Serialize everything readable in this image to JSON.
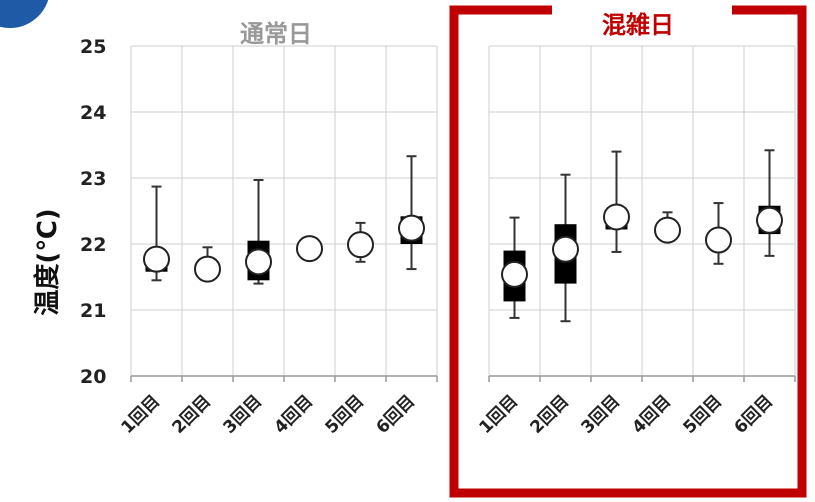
{
  "chart_data": {
    "type": "boxplot",
    "ylabel": "温度(℃)",
    "ylim": [
      20,
      25
    ],
    "yticks": [
      20,
      21,
      22,
      23,
      24,
      25
    ],
    "grid": true,
    "groups": [
      {
        "label": "通常日",
        "label_color": "#999999",
        "categories": [
          "1回目",
          "2回目",
          "3回目",
          "4回目",
          "5回目",
          "6回目"
        ],
        "items": [
          {
            "whisker_low": 21.45,
            "q1": 21.58,
            "median": 21.77,
            "q3": 21.82,
            "whisker_high": 22.87
          },
          {
            "whisker_low": 21.55,
            "q1": 21.58,
            "median": 21.62,
            "q3": 21.65,
            "whisker_high": 21.95
          },
          {
            "whisker_low": 21.4,
            "q1": 21.45,
            "median": 21.73,
            "q3": 22.05,
            "whisker_high": 22.97
          },
          {
            "whisker_low": 21.9,
            "q1": 21.9,
            "median": 21.93,
            "q3": 21.95,
            "whisker_high": 21.97
          },
          {
            "whisker_low": 21.73,
            "q1": 21.9,
            "median": 21.99,
            "q3": 22.05,
            "whisker_high": 22.32
          },
          {
            "whisker_low": 21.62,
            "q1": 22.0,
            "median": 22.24,
            "q3": 22.42,
            "whisker_high": 23.33
          }
        ]
      },
      {
        "label": "混雑日",
        "label_color": "#c00000",
        "categories": [
          "1回目",
          "2回目",
          "3回目",
          "4回目",
          "5回目",
          "6回目"
        ],
        "items": [
          {
            "whisker_low": 20.88,
            "q1": 21.13,
            "median": 21.54,
            "q3": 21.9,
            "whisker_high": 22.4
          },
          {
            "whisker_low": 20.83,
            "q1": 21.4,
            "median": 21.92,
            "q3": 22.3,
            "whisker_high": 23.05
          },
          {
            "whisker_low": 21.88,
            "q1": 22.22,
            "median": 22.41,
            "q3": 22.52,
            "whisker_high": 23.4
          },
          {
            "whisker_low": 22.15,
            "q1": 22.18,
            "median": 22.21,
            "q3": 22.25,
            "whisker_high": 22.48
          },
          {
            "whisker_low": 21.7,
            "q1": 21.98,
            "median": 22.06,
            "q3": 22.14,
            "whisker_high": 22.62
          },
          {
            "whisker_low": 21.82,
            "q1": 22.15,
            "median": 22.36,
            "q3": 22.58,
            "whisker_high": 23.42
          }
        ]
      }
    ]
  },
  "colors": {
    "grid": "#cfcfcf",
    "axis": "#999999",
    "box": "#000000",
    "whisker": "#333333",
    "marker_fill": "#ffffff",
    "highlight": "#c00000",
    "badge": "#1f5aa6"
  },
  "icons": {
    "corner_badge": "circle-badge"
  }
}
